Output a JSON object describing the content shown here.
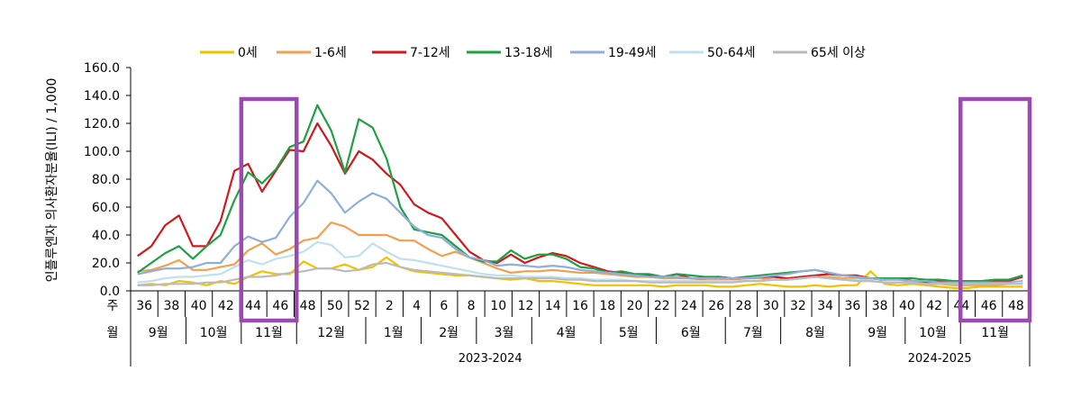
{
  "chart_data": {
    "type": "line",
    "ylabel": "인플루엔자 의사환자분율(ILI) / 1,000",
    "ylim": [
      0,
      160
    ],
    "yticks": [
      "0.0",
      "20.0",
      "40.0",
      "60.0",
      "80.0",
      "100.0",
      "120.0",
      "140.0",
      "160.0"
    ],
    "grid": false,
    "legend_position": "top",
    "row_labels": {
      "week": "주",
      "month": "월"
    },
    "week_ticks": [
      "36",
      "38",
      "40",
      "42",
      "44",
      "46",
      "48",
      "50",
      "52",
      "2",
      "4",
      "6",
      "8",
      "10",
      "12",
      "14",
      "16",
      "18",
      "20",
      "22",
      "24",
      "26",
      "28",
      "30",
      "32",
      "34",
      "36",
      "38",
      "40",
      "42",
      "44",
      "46",
      "48"
    ],
    "months": [
      {
        "label": "9월",
        "start": 0,
        "end": 4
      },
      {
        "label": "10월",
        "start": 4,
        "end": 8
      },
      {
        "label": "11월",
        "start": 8,
        "end": 12
      },
      {
        "label": "12월",
        "start": 12,
        "end": 17
      },
      {
        "label": "1월",
        "start": 17,
        "end": 21
      },
      {
        "label": "2월",
        "start": 21,
        "end": 25
      },
      {
        "label": "3월",
        "start": 25,
        "end": 29
      },
      {
        "label": "4월",
        "start": 29,
        "end": 34
      },
      {
        "label": "5월",
        "start": 34,
        "end": 38
      },
      {
        "label": "6월",
        "start": 38,
        "end": 43
      },
      {
        "label": "7월",
        "start": 43,
        "end": 47
      },
      {
        "label": "8월",
        "start": 47,
        "end": 52
      },
      {
        "label": "9월",
        "start": 52,
        "end": 56
      },
      {
        "label": "10월",
        "start": 56,
        "end": 60
      },
      {
        "label": "11월",
        "start": 60,
        "end": 65
      }
    ],
    "seasons": [
      {
        "label": "2023-2024",
        "start": 0,
        "end": 52
      },
      {
        "label": "2024-2025",
        "start": 52,
        "end": 65
      }
    ],
    "highlights": [
      {
        "start": 8,
        "end": 12
      },
      {
        "start": 60,
        "end": 65
      }
    ],
    "series": [
      {
        "name": "0세",
        "color": "#F2C200",
        "values": [
          4,
          5,
          4,
          7,
          6,
          4,
          7,
          5,
          10,
          14,
          12,
          12,
          21,
          16,
          16,
          19,
          15,
          17,
          24,
          17,
          14,
          13,
          12,
          11,
          11,
          10,
          9,
          8,
          9,
          7,
          7,
          6,
          5,
          4,
          4,
          4,
          4,
          4,
          3,
          4,
          4,
          4,
          3,
          3,
          4,
          5,
          4,
          3,
          3,
          4,
          3,
          4,
          4,
          14,
          5,
          4,
          5,
          4,
          3,
          2,
          2,
          3,
          3,
          3,
          3
        ]
      },
      {
        "name": "1-6세",
        "color": "#F0A050",
        "values": [
          14,
          15,
          18,
          22,
          15,
          15,
          17,
          19,
          29,
          34,
          26,
          30,
          36,
          38,
          49,
          46,
          40,
          40,
          40,
          36,
          36,
          30,
          25,
          28,
          24,
          20,
          16,
          13,
          14,
          14,
          15,
          14,
          13,
          13,
          12,
          11,
          10,
          10,
          9,
          9,
          9,
          8,
          8,
          8,
          9,
          9,
          8,
          8,
          9,
          10,
          10,
          9,
          9,
          7,
          6,
          6,
          6,
          5,
          5,
          4,
          4,
          4,
          4,
          5,
          6
        ]
      },
      {
        "name": "7-12세",
        "color": "#D0191E",
        "values": [
          25,
          32,
          47,
          54,
          32,
          32,
          50,
          86,
          91,
          71,
          86,
          101,
          100,
          120,
          104,
          84,
          100,
          94,
          84,
          76,
          62,
          56,
          52,
          40,
          28,
          22,
          20,
          26,
          20,
          24,
          27,
          25,
          20,
          17,
          14,
          13,
          11,
          11,
          10,
          12,
          9,
          9,
          10,
          9,
          9,
          10,
          10,
          9,
          10,
          11,
          12,
          11,
          11,
          9,
          8,
          9,
          7,
          6,
          7,
          6,
          6,
          6,
          7,
          7,
          10
        ]
      },
      {
        "name": "13-18세",
        "color": "#1FA043",
        "values": [
          13,
          20,
          27,
          32,
          23,
          32,
          40,
          65,
          85,
          77,
          87,
          103,
          107,
          133,
          115,
          85,
          123,
          117,
          95,
          60,
          44,
          42,
          40,
          32,
          24,
          21,
          21,
          29,
          23,
          26,
          26,
          23,
          17,
          16,
          13,
          14,
          12,
          12,
          10,
          12,
          11,
          10,
          10,
          9,
          10,
          11,
          12,
          13,
          14,
          15,
          13,
          11,
          10,
          9,
          9,
          9,
          9,
          8,
          8,
          7,
          7,
          7,
          8,
          8,
          11
        ]
      },
      {
        "name": "19-49세",
        "color": "#8FAEDC",
        "values": [
          12,
          14,
          16,
          16,
          17,
          20,
          20,
          32,
          39,
          35,
          38,
          53,
          63,
          79,
          70,
          56,
          64,
          70,
          66,
          56,
          46,
          40,
          38,
          30,
          24,
          22,
          18,
          19,
          18,
          17,
          18,
          17,
          15,
          14,
          13,
          12,
          11,
          10,
          10,
          10,
          9,
          9,
          9,
          9,
          9,
          10,
          11,
          12,
          14,
          15,
          13,
          11,
          10,
          9,
          8,
          8,
          7,
          7,
          6,
          6,
          6,
          6,
          6,
          6,
          7
        ]
      },
      {
        "name": "50-64세",
        "color": "#BFE0EE",
        "values": [
          6,
          7,
          9,
          10,
          10,
          11,
          12,
          17,
          22,
          19,
          23,
          25,
          28,
          35,
          33,
          24,
          25,
          34,
          28,
          23,
          22,
          20,
          18,
          16,
          14,
          12,
          11,
          11,
          10,
          10,
          10,
          9,
          9,
          8,
          8,
          8,
          7,
          7,
          7,
          7,
          7,
          7,
          7,
          7,
          7,
          7,
          8,
          8,
          9,
          10,
          9,
          8,
          8,
          7,
          6,
          6,
          6,
          5,
          5,
          5,
          5,
          5,
          5,
          5,
          6
        ]
      },
      {
        "name": "65세 이상",
        "color": "#BBBBBB",
        "values": [
          4,
          4,
          5,
          5,
          5,
          6,
          6,
          8,
          10,
          10,
          11,
          13,
          14,
          16,
          16,
          14,
          15,
          19,
          20,
          17,
          15,
          14,
          13,
          12,
          11,
          10,
          9,
          9,
          9,
          9,
          9,
          8,
          8,
          7,
          7,
          7,
          7,
          6,
          6,
          6,
          6,
          6,
          6,
          6,
          7,
          7,
          8,
          8,
          9,
          10,
          9,
          8,
          7,
          7,
          6,
          6,
          6,
          5,
          5,
          5,
          5,
          5,
          5,
          5,
          5
        ]
      }
    ]
  }
}
